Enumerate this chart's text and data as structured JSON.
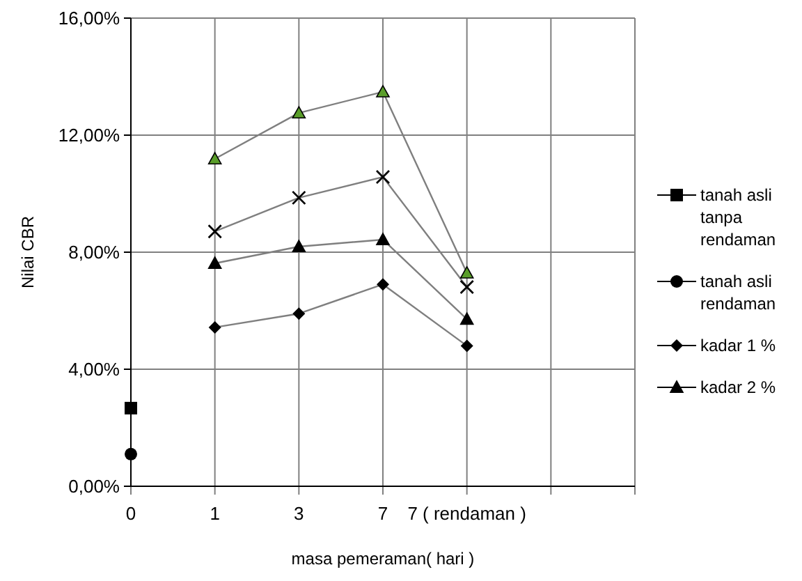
{
  "chart_data": {
    "type": "line",
    "xlabel": "masa pemeraman( hari )",
    "ylabel": "Nilai CBR",
    "categories": [
      "0",
      "1",
      "3",
      "7",
      "7 ( rendaman )",
      null
    ],
    "ylim": [
      0,
      16
    ],
    "yticks": [
      {
        "value": 0,
        "label": "0,00%"
      },
      {
        "value": 4,
        "label": "4,00%"
      },
      {
        "value": 8,
        "label": "8,00%"
      },
      {
        "value": 12,
        "label": "12,00%"
      },
      {
        "value": 16,
        "label": "16,00%"
      }
    ],
    "grid": true,
    "legend": "right",
    "series": [
      {
        "name": "tanah asli tanpa rendaman",
        "color": "#000000",
        "marker": "square",
        "values": [
          2.67,
          null,
          null,
          null,
          null,
          null
        ]
      },
      {
        "name": "tanah asli rendaman",
        "color": "#000000",
        "marker": "circle",
        "values": [
          1.1,
          null,
          null,
          null,
          null,
          null
        ]
      },
      {
        "name": "kadar 1 %",
        "color": "#000000",
        "marker": "diamond",
        "values": [
          null,
          5.43,
          5.9,
          6.9,
          4.8,
          null
        ]
      },
      {
        "name": "kadar 2 %",
        "color": "#000000",
        "marker": "triangle",
        "values": [
          null,
          7.62,
          8.19,
          8.43,
          5.71,
          null
        ]
      },
      {
        "color": "#000000",
        "marker": "cross",
        "values": [
          null,
          8.71,
          9.86,
          10.57,
          6.81,
          null
        ]
      },
      {
        "color": "#5a9e2a",
        "marker": "triangle",
        "values": [
          null,
          11.19,
          12.76,
          13.48,
          7.29,
          null
        ]
      }
    ]
  }
}
